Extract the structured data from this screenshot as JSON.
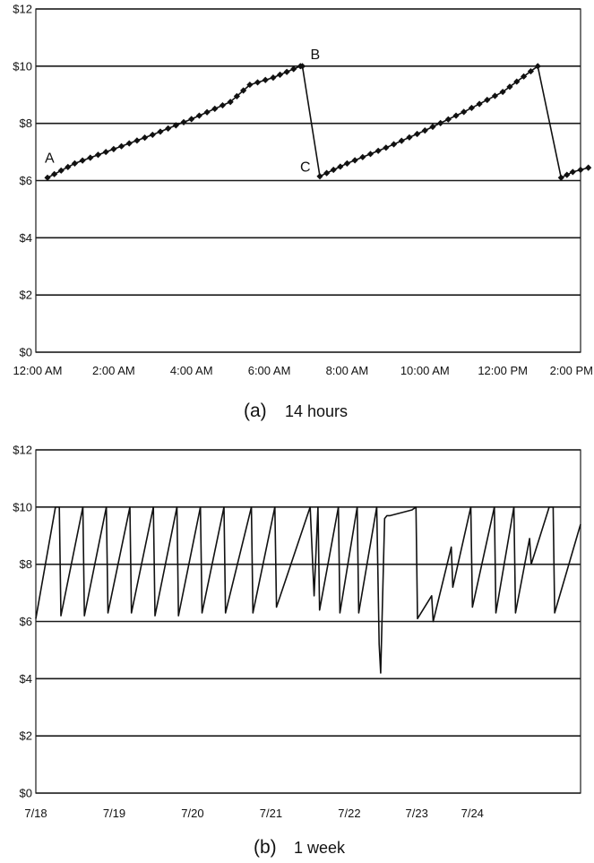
{
  "chart_data": [
    {
      "type": "line",
      "caption_letter": "(a)",
      "caption_text": "14 hours",
      "ylim": [
        0,
        12
      ],
      "yticks": [
        "$0",
        "$2",
        "$4",
        "$6",
        "$8",
        "$10",
        "$12"
      ],
      "xlim": [
        0,
        14
      ],
      "xticks": [
        "12:00 AM",
        "2:00 AM",
        "4:00 AM",
        "6:00 AM",
        "8:00 AM",
        "10:00 AM",
        "12:00 PM",
        "2:00 PM"
      ],
      "grid": true,
      "markers": "diamond",
      "series": [
        {
          "x": [
            0.3,
            1,
            2,
            3,
            4,
            5,
            5.5,
            6.1,
            6.8,
            6.85,
            7.3,
            8,
            9,
            10,
            11,
            12,
            12.9,
            13.5,
            13.8,
            14.2
          ],
          "values": [
            6.1,
            6.6,
            7.1,
            7.6,
            8.15,
            8.75,
            9.35,
            9.6,
            10.0,
            10.0,
            6.15,
            6.6,
            7.15,
            7.75,
            8.4,
            9.1,
            10.0,
            6.1,
            6.3,
            6.45
          ]
        }
      ],
      "annotations": [
        {
          "label": "A",
          "x": 0.3,
          "y": 6.1
        },
        {
          "label": "B",
          "x": 6.85,
          "y": 10.0
        },
        {
          "label": "C",
          "x": 7.3,
          "y": 6.15
        }
      ]
    },
    {
      "type": "line",
      "caption_letter": "(b)",
      "caption_text": "1 week",
      "ylim": [
        0,
        12
      ],
      "yticks": [
        "$0",
        "$2",
        "$4",
        "$6",
        "$8",
        "$10",
        "$12"
      ],
      "xlim": [
        0,
        6.95
      ],
      "xticks": [
        "7/18",
        "7/19",
        "7/20",
        "7/21",
        "7/22",
        "7/23",
        "7/24"
      ],
      "xtick_positions": [
        0,
        1,
        2,
        3,
        4,
        4.86,
        5.57
      ],
      "grid": true,
      "series": [
        {
          "x": [
            0,
            0.25,
            0.3,
            0.32,
            0.6,
            0.62,
            0.9,
            0.92,
            1.2,
            1.22,
            1.5,
            1.52,
            1.8,
            1.82,
            2.1,
            2.12,
            2.4,
            2.42,
            2.75,
            2.77,
            3.05,
            3.07,
            3.5,
            3.55,
            3.6,
            3.62,
            3.86,
            3.88,
            4.1,
            4.12,
            4.35,
            4.38,
            4.4,
            4.45,
            4.48,
            4.52,
            4.8,
            4.85,
            4.87,
            5.05,
            5.07,
            5.3,
            5.32,
            5.55,
            5.57,
            5.85,
            5.87,
            6.1,
            6.12,
            6.3,
            6.32,
            6.55,
            6.6,
            6.62,
            6.95
          ],
          "values": [
            6.1,
            10.0,
            10.0,
            6.2,
            10.0,
            6.2,
            10.0,
            6.3,
            10.0,
            6.3,
            10.0,
            6.2,
            10.0,
            6.2,
            10.0,
            6.3,
            10.0,
            6.3,
            10.0,
            6.3,
            10.0,
            6.5,
            10.0,
            6.9,
            10.0,
            6.4,
            10.0,
            6.3,
            10.0,
            6.3,
            10.0,
            5.2,
            4.2,
            9.6,
            9.7,
            9.7,
            9.9,
            10.0,
            6.1,
            6.9,
            6.0,
            8.6,
            7.2,
            10.0,
            6.5,
            10.0,
            6.3,
            10.0,
            6.3,
            8.9,
            8.0,
            10.0,
            10.0,
            6.3,
            9.4
          ]
        }
      ]
    }
  ]
}
